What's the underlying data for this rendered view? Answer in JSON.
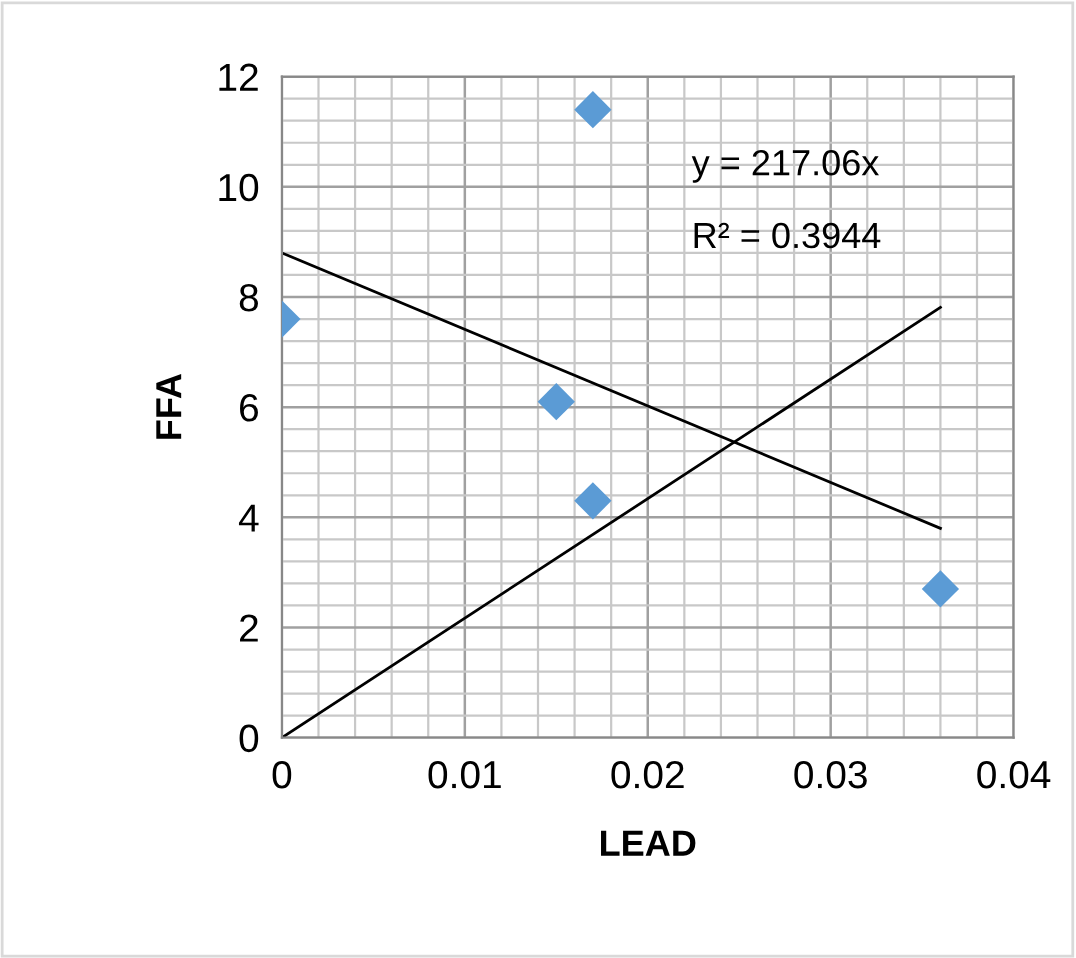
{
  "chart_data": {
    "type": "scatter",
    "xlabel": "LEAD",
    "ylabel": "FFA",
    "grid": true,
    "series": [
      {
        "marker": "diamond",
        "color": "#5b9bd5",
        "x": [
          0,
          0.015,
          0.017,
          0.017,
          0.036
        ],
        "values": [
          7.6,
          6.1,
          11.4,
          4.3,
          2.7
        ]
      },
      {
        "type": "line",
        "marker": "none",
        "color": "#000000",
        "x": [
          0,
          0.036
        ],
        "values": [
          0,
          7.81
        ]
      },
      {
        "type": "line",
        "marker": "none",
        "color": "#000000",
        "x": [
          0,
          0.036
        ],
        "values": [
          8.8,
          3.8
        ]
      }
    ],
    "xlim": [
      0,
      0.04
    ],
    "xticks": [
      {
        "value": 0,
        "label": "0"
      },
      0.01,
      0.02,
      0.03,
      0.04
    ],
    "ylim": [
      0,
      12
    ],
    "yticks": [
      0,
      2,
      4,
      6,
      8,
      10,
      12
    ],
    "annotations": [
      "y = 217.06x",
      "R² = 0.3944"
    ]
  }
}
